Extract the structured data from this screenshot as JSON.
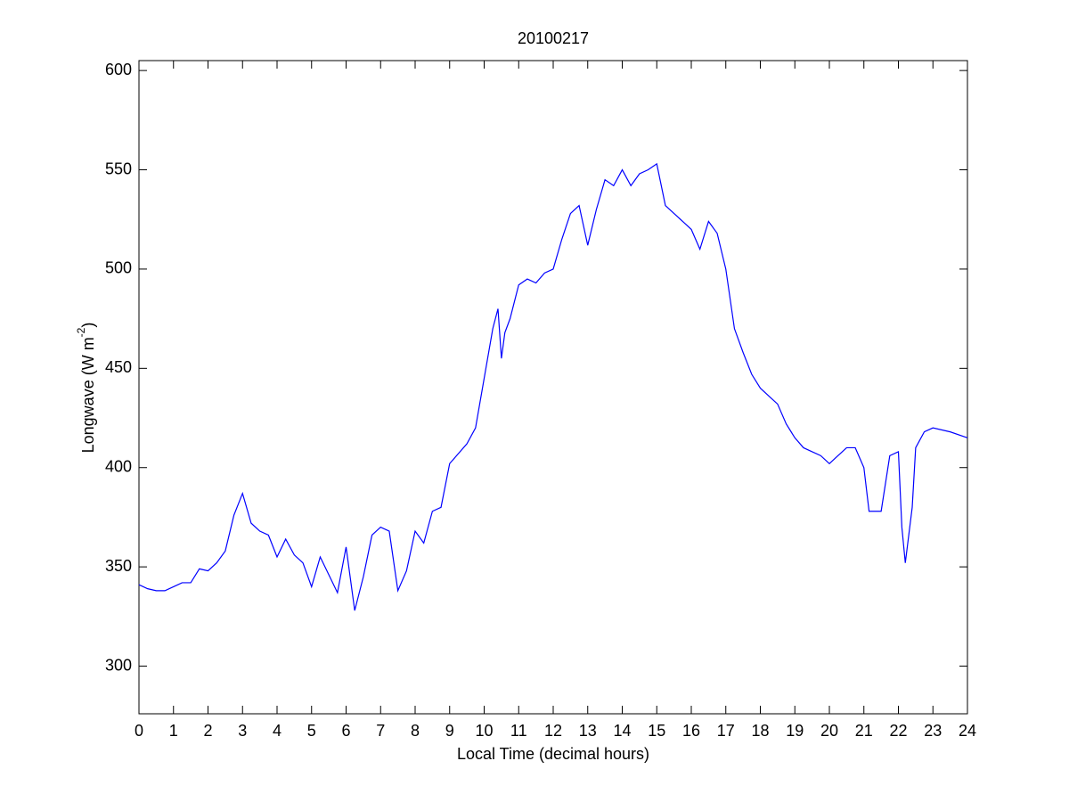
{
  "chart_data": {
    "type": "line",
    "title": "20100217",
    "xlabel": "Local Time (decimal hours)",
    "ylabel": [
      "Longwave (W m",
      "-2",
      ")"
    ],
    "x": [
      0,
      0.25,
      0.5,
      0.75,
      1,
      1.25,
      1.5,
      1.75,
      2,
      2.25,
      2.5,
      2.75,
      3,
      3.25,
      3.5,
      3.75,
      4,
      4.25,
      4.5,
      4.75,
      5,
      5.25,
      5.5,
      5.75,
      6,
      6.25,
      6.5,
      6.75,
      7,
      7.25,
      7.5,
      7.75,
      8,
      8.25,
      8.5,
      8.75,
      9,
      9.25,
      9.5,
      9.75,
      10,
      10.25,
      10.4,
      10.5,
      10.6,
      10.75,
      11,
      11.25,
      11.5,
      11.75,
      12,
      12.25,
      12.5,
      12.75,
      13,
      13.25,
      13.5,
      13.75,
      14,
      14.25,
      14.5,
      14.75,
      15,
      15.25,
      15.5,
      15.75,
      16,
      16.25,
      16.5,
      16.75,
      17,
      17.25,
      17.5,
      17.75,
      18,
      18.25,
      18.5,
      18.75,
      19,
      19.25,
      19.5,
      19.75,
      20,
      20.25,
      20.5,
      20.75,
      21,
      21.15,
      21.5,
      21.75,
      22,
      22.1,
      22.2,
      22.4,
      22.5,
      22.75,
      23,
      23.5,
      24
    ],
    "series": [
      {
        "name": "Longwave",
        "color": "#0000ff",
        "values": [
          341,
          339,
          338,
          338,
          340,
          342,
          342,
          349,
          348,
          352,
          358,
          376,
          387,
          372,
          368,
          366,
          355,
          364,
          356,
          352,
          340,
          355,
          346,
          337,
          360,
          328,
          345,
          366,
          370,
          368,
          338,
          348,
          368,
          362,
          378,
          380,
          402,
          407,
          412,
          420,
          445,
          470,
          480,
          455,
          468,
          475,
          492,
          495,
          493,
          498,
          500,
          515,
          528,
          532,
          512,
          530,
          545,
          542,
          550,
          542,
          548,
          550,
          553,
          532,
          528,
          524,
          520,
          510,
          524,
          518,
          500,
          470,
          458,
          447,
          440,
          436,
          432,
          422,
          415,
          410,
          408,
          406,
          402,
          406,
          410,
          410,
          400,
          378,
          378,
          406,
          408,
          370,
          352,
          380,
          410,
          418,
          420,
          418,
          415
        ]
      }
    ],
    "xlim": [
      0,
      24
    ],
    "ylim": [
      276,
      605
    ],
    "xticks": [
      0,
      1,
      2,
      3,
      4,
      5,
      6,
      7,
      8,
      9,
      10,
      11,
      12,
      13,
      14,
      15,
      16,
      17,
      18,
      19,
      20,
      21,
      22,
      23,
      24
    ],
    "yticks": [
      300,
      350,
      400,
      450,
      500,
      550,
      600
    ]
  }
}
